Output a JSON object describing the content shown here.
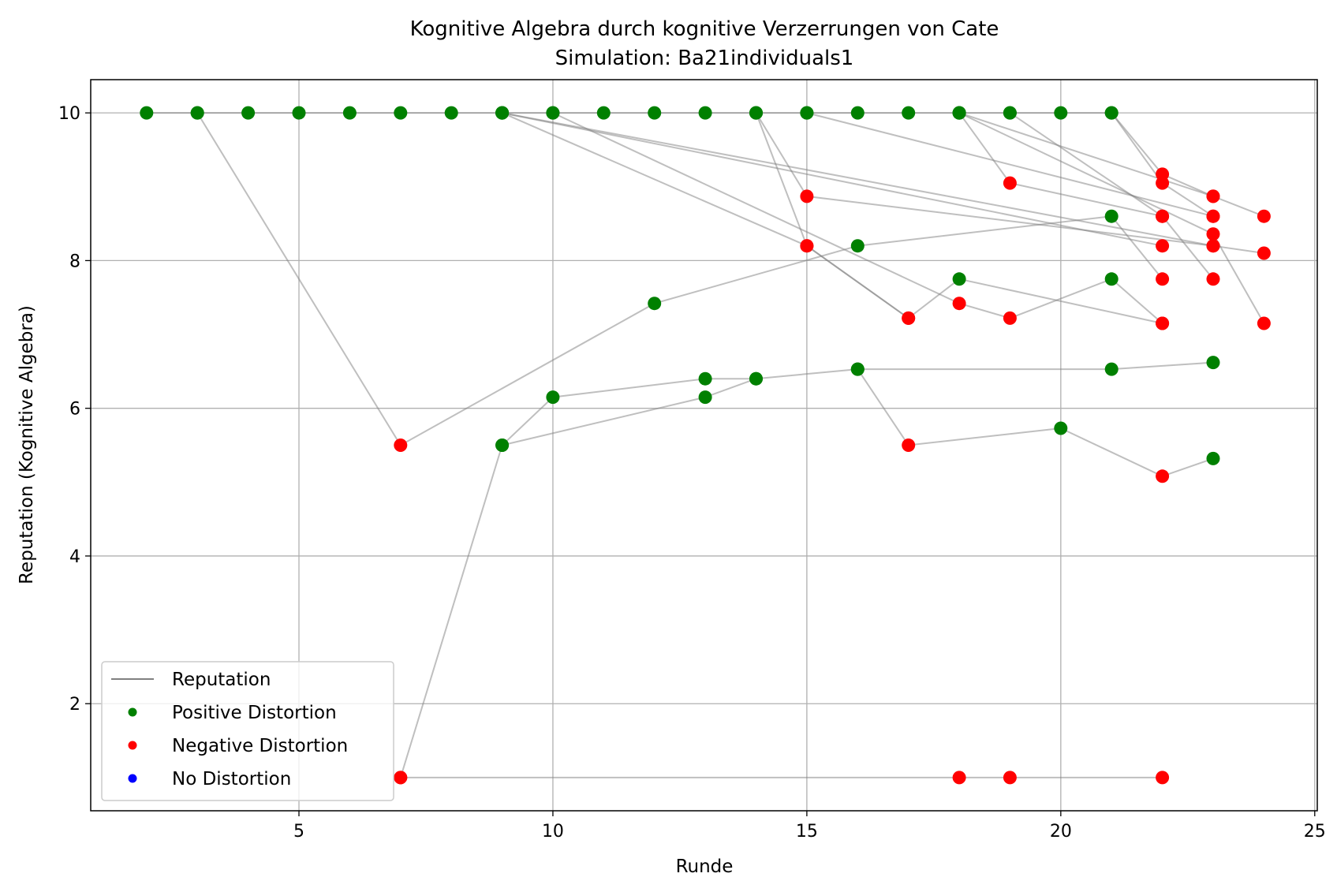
{
  "chart_data": {
    "type": "scatter",
    "title": "Kognitive Algebra durch kognitive Verzerrungen von Cate",
    "subtitle": "Simulation: Ba21individuals1",
    "xlabel": "Runde",
    "ylabel": "Reputation (Kognitive Algebra)",
    "xlim": [
      0.9,
      25.05
    ],
    "ylim": [
      0.55,
      10.45
    ],
    "xticks": [
      5,
      10,
      15,
      20,
      25
    ],
    "yticks": [
      2,
      4,
      6,
      8,
      10
    ],
    "grid": true,
    "legend_position": "lower-left",
    "legend": [
      {
        "label": "Reputation",
        "kind": "line",
        "color": "#808080"
      },
      {
        "label": "Positive Distortion",
        "kind": "dot",
        "color": "#008000"
      },
      {
        "label": "Negative Distortion",
        "kind": "dot",
        "color": "#ff0000"
      },
      {
        "label": "No Distortion",
        "kind": "dot",
        "color": "#0000ff"
      }
    ],
    "colors": {
      "positive": "#008000",
      "negative": "#ff0000",
      "none": "#0000ff",
      "line": "#808080"
    },
    "series": [
      {
        "points": [
          [
            2,
            10,
            "pos"
          ],
          [
            3,
            10,
            "pos"
          ],
          [
            4,
            10,
            "pos"
          ],
          [
            5,
            10,
            "pos"
          ],
          [
            6,
            10,
            "pos"
          ],
          [
            7,
            10,
            "pos"
          ],
          [
            8,
            10,
            "pos"
          ],
          [
            9,
            10,
            "pos"
          ],
          [
            10,
            10,
            "pos"
          ],
          [
            11,
            10,
            "pos"
          ],
          [
            12,
            10,
            "pos"
          ],
          [
            13,
            10,
            "pos"
          ],
          [
            14,
            10,
            "pos"
          ],
          [
            15,
            10,
            "pos"
          ],
          [
            16,
            10,
            "pos"
          ],
          [
            17,
            10,
            "pos"
          ],
          [
            18,
            10,
            "pos"
          ],
          [
            19,
            10,
            "pos"
          ],
          [
            20,
            10,
            "pos"
          ],
          [
            21,
            10,
            "pos"
          ],
          [
            22,
            9.05,
            "neg"
          ],
          [
            23,
            8.6,
            "neg"
          ]
        ]
      },
      {
        "points": [
          [
            3,
            10,
            "pos"
          ],
          [
            7,
            5.5,
            "neg"
          ],
          [
            12,
            7.42,
            "pos"
          ],
          [
            16,
            8.2,
            "pos"
          ],
          [
            21,
            8.6,
            "pos"
          ],
          [
            22,
            7.75,
            "neg"
          ]
        ]
      },
      {
        "points": [
          [
            7,
            1,
            "neg"
          ],
          [
            9,
            5.5,
            "pos"
          ],
          [
            10,
            6.15,
            "pos"
          ],
          [
            13,
            6.4,
            "pos"
          ],
          [
            14,
            6.4,
            "pos"
          ],
          [
            16,
            6.53,
            "pos"
          ],
          [
            21,
            6.53,
            "pos"
          ],
          [
            23,
            6.62,
            "pos"
          ]
        ]
      },
      {
        "points": [
          [
            9,
            5.5,
            "pos"
          ],
          [
            13,
            6.15,
            "pos"
          ],
          [
            14,
            6.4,
            "pos"
          ]
        ]
      },
      {
        "points": [
          [
            16,
            6.53,
            "pos"
          ],
          [
            17,
            5.5,
            "neg"
          ],
          [
            20,
            5.73,
            "pos"
          ],
          [
            22,
            5.08,
            "neg"
          ],
          [
            23,
            5.32,
            "pos"
          ]
        ]
      },
      {
        "points": [
          [
            7,
            1,
            "neg"
          ],
          [
            18,
            1,
            "neg"
          ],
          [
            19,
            1,
            "neg"
          ],
          [
            22,
            1,
            "neg"
          ]
        ]
      },
      {
        "points": [
          [
            9,
            10,
            "pos"
          ],
          [
            15,
            8.2,
            "neg"
          ],
          [
            17,
            7.22,
            "neg"
          ],
          [
            18,
            7.75,
            "pos"
          ],
          [
            22,
            7.15,
            "neg"
          ]
        ]
      },
      {
        "points": [
          [
            9,
            10,
            "pos"
          ],
          [
            23,
            8.2,
            "neg"
          ],
          [
            24,
            8.1,
            "neg"
          ]
        ]
      },
      {
        "points": [
          [
            9,
            10,
            "pos"
          ],
          [
            22,
            8.2,
            "neg"
          ]
        ]
      },
      {
        "points": [
          [
            10,
            10,
            "pos"
          ],
          [
            18,
            7.42,
            "neg"
          ],
          [
            19,
            7.22,
            "neg"
          ],
          [
            21,
            7.75,
            "pos"
          ],
          [
            22,
            7.15,
            "neg"
          ]
        ]
      },
      {
        "points": [
          [
            14,
            10,
            "pos"
          ],
          [
            15,
            8.87,
            "neg"
          ],
          [
            23,
            8.2,
            "neg"
          ]
        ]
      },
      {
        "points": [
          [
            14,
            10,
            "pos"
          ],
          [
            15,
            8.2,
            "neg"
          ],
          [
            17,
            7.22,
            "neg"
          ]
        ]
      },
      {
        "points": [
          [
            15,
            10,
            "pos"
          ],
          [
            23,
            8.6,
            "neg"
          ]
        ]
      },
      {
        "points": [
          [
            18,
            10,
            "pos"
          ],
          [
            19,
            9.05,
            "neg"
          ],
          [
            22,
            8.6,
            "neg"
          ],
          [
            23,
            7.75,
            "neg"
          ]
        ]
      },
      {
        "points": [
          [
            18,
            10,
            "pos"
          ],
          [
            23,
            8.87,
            "neg"
          ],
          [
            24,
            8.6,
            "neg"
          ]
        ]
      },
      {
        "points": [
          [
            18,
            10,
            "pos"
          ],
          [
            23,
            8.36,
            "neg"
          ],
          [
            24,
            7.15,
            "neg"
          ]
        ]
      },
      {
        "points": [
          [
            19,
            10,
            "pos"
          ],
          [
            22,
            8.6,
            "neg"
          ]
        ]
      },
      {
        "points": [
          [
            21,
            10,
            "pos"
          ],
          [
            22,
            9.17,
            "neg"
          ],
          [
            23,
            8.87,
            "neg"
          ]
        ]
      }
    ]
  }
}
